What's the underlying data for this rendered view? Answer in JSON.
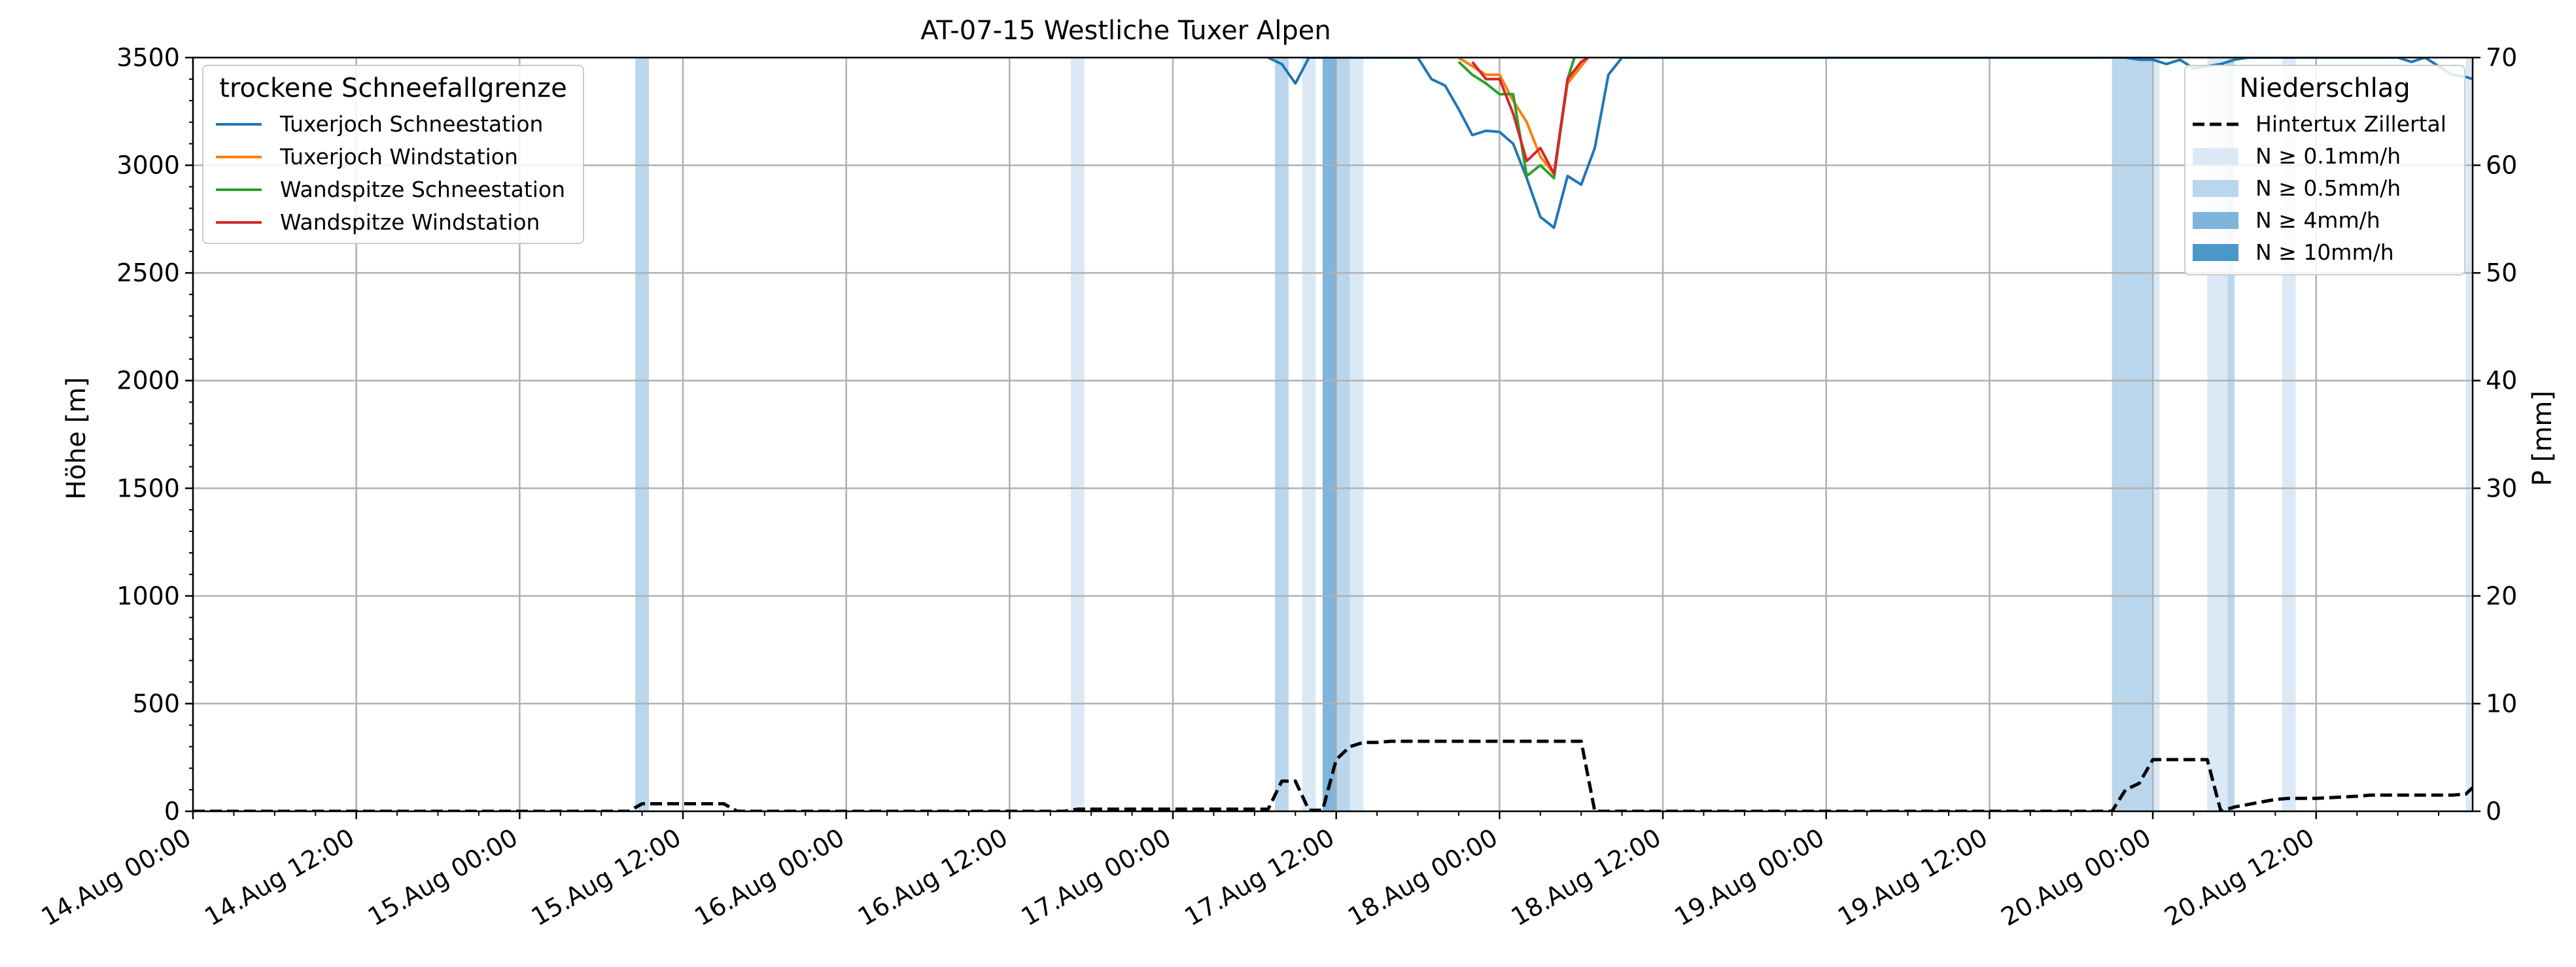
{
  "chart_data": {
    "type": "line",
    "title": "AT-07-15 Westliche Tuxer Alpen",
    "ylabel": "Höhe [m]",
    "y2label": "P [mm]",
    "ylim": [
      0,
      3500
    ],
    "y2lim": [
      0,
      70
    ],
    "xlim": [
      "2024-08-14 00:00",
      "2024-08-20 23:30"
    ],
    "grid": true,
    "x_tick_labels": [
      "14.Aug 00:00",
      "14.Aug 12:00",
      "15.Aug 00:00",
      "15.Aug 12:00",
      "16.Aug 00:00",
      "16.Aug 12:00",
      "17.Aug 00:00",
      "17.Aug 12:00",
      "18.Aug 00:00",
      "18.Aug 12:00",
      "19.Aug 00:00",
      "19.Aug 12:00",
      "20.Aug 00:00",
      "20.Aug 12:00"
    ],
    "y_ticks": [
      0,
      500,
      1000,
      1500,
      2000,
      2500,
      3000,
      3500
    ],
    "y2_ticks": [
      0,
      10,
      20,
      30,
      40,
      50,
      60,
      70
    ],
    "legend_left": {
      "title": "trockene Schneefallgrenze",
      "placement": "top-left",
      "entries": [
        "Tuxerjoch Schneestation",
        "Tuxerjoch Windstation",
        "Wandspitze Schneestation",
        "Wandspitze Windstation"
      ]
    },
    "legend_right": {
      "title": "Niederschlag",
      "placement": "top-right",
      "entries": [
        "Hintertux Zillertal",
        "N ≥ 0.1mm/h",
        "N ≥ 0.5mm/h",
        "N ≥ 4mm/h",
        "N ≥ 10mm/h"
      ]
    },
    "series": [
      {
        "name": "Tuxerjoch Schneestation",
        "color": "#1f77b4",
        "x": [
          "2024-08-17 07:00",
          "2024-08-17 08:00",
          "2024-08-17 09:00",
          "2024-08-17 10:00",
          "2024-08-17 18:00",
          "2024-08-17 19:00",
          "2024-08-17 20:00",
          "2024-08-17 21:00",
          "2024-08-17 22:00",
          "2024-08-17 23:00",
          "2024-08-18 00:00",
          "2024-08-18 01:00",
          "2024-08-18 02:00",
          "2024-08-18 03:00",
          "2024-08-18 04:00",
          "2024-08-18 05:00",
          "2024-08-18 06:00",
          "2024-08-18 07:00",
          "2024-08-18 08:00",
          "2024-08-18 09:00",
          "2024-08-18 10:00",
          "2024-08-19 22:00",
          "2024-08-19 23:00",
          "2024-08-20 00:00",
          "2024-08-20 01:00",
          "2024-08-20 02:00",
          "2024-08-20 03:00",
          "2024-08-20 04:00",
          "2024-08-20 05:00",
          "2024-08-20 06:00",
          "2024-08-20 07:00",
          "2024-08-20 08:00",
          "2024-08-20 18:00",
          "2024-08-20 19:00",
          "2024-08-20 20:00",
          "2024-08-20 21:00",
          "2024-08-20 22:00",
          "2024-08-20 23:00",
          "2024-08-20 23:30"
        ],
        "y": [
          3500,
          3470,
          3380,
          3500,
          3500,
          3400,
          3370,
          3260,
          3140,
          3160,
          3155,
          3100,
          2940,
          2760,
          2710,
          2950,
          2910,
          3080,
          3420,
          3500,
          3500,
          3500,
          3490,
          3490,
          3470,
          3490,
          3450,
          3460,
          3470,
          3490,
          3500,
          3500,
          3500,
          3480,
          3500,
          3460,
          3420,
          3410,
          3400
        ]
      },
      {
        "name": "Tuxerjoch Windstation",
        "color": "#ff7f0e",
        "x": [
          "2024-08-17 21:00",
          "2024-08-17 22:00",
          "2024-08-17 23:00",
          "2024-08-18 00:00",
          "2024-08-18 01:00",
          "2024-08-18 02:00",
          "2024-08-18 03:00",
          "2024-08-18 04:00",
          "2024-08-18 05:00",
          "2024-08-18 06:00",
          "2024-08-18 06:30"
        ],
        "y": [
          3500,
          3460,
          3420,
          3420,
          3300,
          3200,
          3040,
          2960,
          3380,
          3460,
          3500
        ]
      },
      {
        "name": "Wandspitze Schneestation",
        "color": "#2ca02c",
        "x": [
          "2024-08-17 21:00",
          "2024-08-17 22:00",
          "2024-08-17 23:00",
          "2024-08-18 00:00",
          "2024-08-18 01:00",
          "2024-08-18 02:00",
          "2024-08-18 03:00",
          "2024-08-18 04:00",
          "2024-08-18 05:00",
          "2024-08-18 05:30"
        ],
        "y": [
          3480,
          3420,
          3380,
          3330,
          3330,
          2950,
          3000,
          2940,
          3400,
          3500
        ]
      },
      {
        "name": "Wandspitze Windstation",
        "color": "#d62728",
        "x": [
          "2024-08-17 22:00",
          "2024-08-17 23:00",
          "2024-08-18 00:00",
          "2024-08-18 01:00",
          "2024-08-18 02:00",
          "2024-08-18 03:00",
          "2024-08-18 04:00",
          "2024-08-18 05:00",
          "2024-08-18 06:00",
          "2024-08-18 06:30"
        ],
        "y": [
          3480,
          3400,
          3400,
          3240,
          3020,
          3080,
          2960,
          3400,
          3480,
          3500
        ]
      },
      {
        "name": "Hintertux Zillertal",
        "color": "#000000",
        "axis": "right",
        "dashed": true,
        "x": [
          "2024-08-14 00:00",
          "2024-08-15 08:00",
          "2024-08-15 09:00",
          "2024-08-15 15:00",
          "2024-08-15 16:00",
          "2024-08-16 16:00",
          "2024-08-16 17:00",
          "2024-08-17 07:00",
          "2024-08-17 08:00",
          "2024-08-17 09:00",
          "2024-08-17 10:00",
          "2024-08-17 11:00",
          "2024-08-17 12:00",
          "2024-08-17 13:00",
          "2024-08-17 14:00",
          "2024-08-17 15:00",
          "2024-08-17 16:00",
          "2024-08-18 06:00",
          "2024-08-18 07:00",
          "2024-08-19 21:00",
          "2024-08-19 22:00",
          "2024-08-19 23:00",
          "2024-08-20 00:00",
          "2024-08-20 03:00",
          "2024-08-20 04:00",
          "2024-08-20 05:00",
          "2024-08-20 06:00",
          "2024-08-20 09:00",
          "2024-08-20 10:00",
          "2024-08-20 11:00",
          "2024-08-20 12:00",
          "2024-08-20 15:00",
          "2024-08-20 16:00",
          "2024-08-20 22:00",
          "2024-08-20 23:00",
          "2024-08-20 23:30"
        ],
        "y": [
          0,
          0,
          0.7,
          0.7,
          0,
          0,
          0.2,
          0.2,
          2.8,
          2.8,
          0.1,
          0.1,
          4.8,
          6.0,
          6.4,
          6.4,
          6.5,
          6.5,
          0,
          0,
          2.0,
          2.6,
          4.8,
          4.8,
          4.8,
          0,
          0.4,
          1.1,
          1.2,
          1.2,
          1.2,
          1.4,
          1.5,
          1.5,
          1.6,
          2.2
        ]
      }
    ],
    "precip_bands": [
      {
        "start": "2024-08-15 08:30",
        "end": "2024-08-15 09:30",
        "level": "N ≥ 0.5mm/h"
      },
      {
        "start": "2024-08-16 16:30",
        "end": "2024-08-16 17:30",
        "level": "N ≥ 0.1mm/h"
      },
      {
        "start": "2024-08-17 07:30",
        "end": "2024-08-17 08:30",
        "level": "N ≥ 0.5mm/h"
      },
      {
        "start": "2024-08-17 09:30",
        "end": "2024-08-17 10:30",
        "level": "N ≥ 0.1mm/h"
      },
      {
        "start": "2024-08-17 11:00",
        "end": "2024-08-17 12:00",
        "level": "N ≥ 4mm/h"
      },
      {
        "start": "2024-08-17 12:00",
        "end": "2024-08-17 13:00",
        "level": "N ≥ 0.5mm/h"
      },
      {
        "start": "2024-08-17 13:00",
        "end": "2024-08-17 14:00",
        "level": "N ≥ 0.1mm/h"
      },
      {
        "start": "2024-08-19 21:00",
        "end": "2024-08-20 00:00",
        "level": "N ≥ 0.5mm/h"
      },
      {
        "start": "2024-08-20 00:00",
        "end": "2024-08-20 00:30",
        "level": "N ≥ 0.1mm/h"
      },
      {
        "start": "2024-08-20 04:00",
        "end": "2024-08-20 05:30",
        "level": "N ≥ 0.1mm/h"
      },
      {
        "start": "2024-08-20 05:30",
        "end": "2024-08-20 06:00",
        "level": "N ≥ 0.5mm/h"
      },
      {
        "start": "2024-08-20 09:30",
        "end": "2024-08-20 10:30",
        "level": "N ≥ 0.1mm/h"
      },
      {
        "start": "2024-08-20 23:00",
        "end": "2024-08-20 23:30",
        "level": "N ≥ 0.1mm/h"
      }
    ],
    "band_colors": {
      "N ≥ 0.1mm/h": "#dbe9f6",
      "N ≥ 0.5mm/h": "#b9d6ec",
      "N ≥ 4mm/h": "#7fb5dc",
      "N ≥ 10mm/h": "#4a97c9"
    }
  }
}
